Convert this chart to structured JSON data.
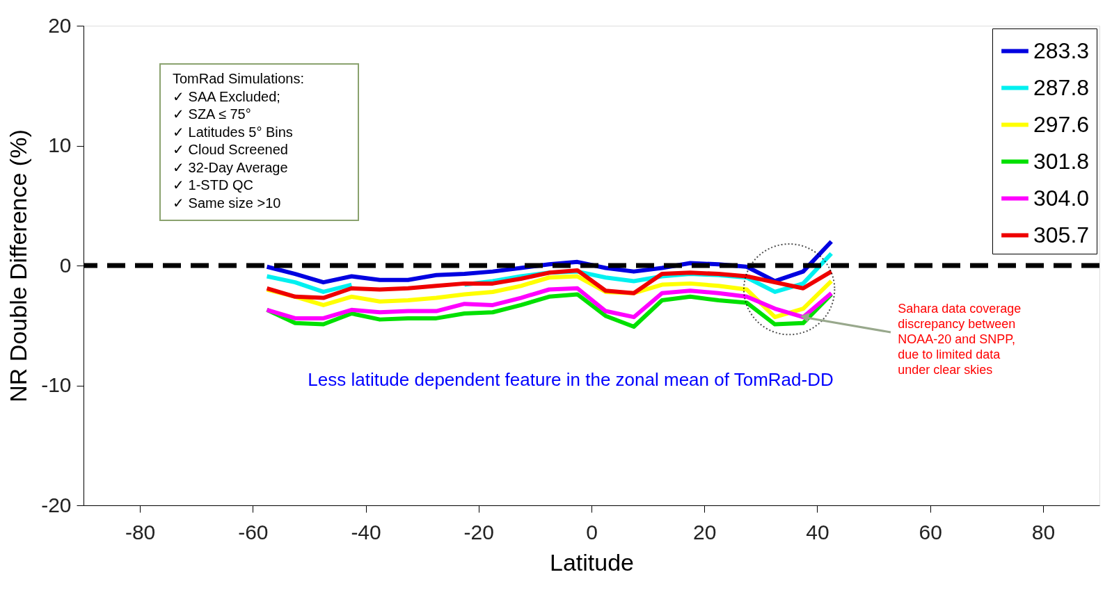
{
  "chart_data": {
    "type": "line",
    "xlabel": "Latitude",
    "ylabel": "NR Double Difference (%)",
    "x": [
      -57.5,
      -52.5,
      -47.5,
      -42.5,
      -37.5,
      -32.5,
      -27.5,
      -22.5,
      -17.5,
      -12.5,
      -7.5,
      -2.5,
      2.5,
      7.5,
      12.5,
      17.5,
      22.5,
      27.5,
      32.5,
      37.5,
      42.5
    ],
    "series": [
      {
        "name": "283.3",
        "color": "#0000e0",
        "values": [
          -0.1,
          -0.7,
          -1.4,
          -0.9,
          -1.2,
          -1.2,
          -0.8,
          -0.7,
          -0.5,
          -0.2,
          0.1,
          0.3,
          -0.2,
          -0.5,
          -0.2,
          0.2,
          0.1,
          -0.1,
          -1.3,
          -0.5,
          2.0
        ]
      },
      {
        "name": "287.8",
        "color": "#00f0f0",
        "values": [
          -0.9,
          -1.4,
          -2.2,
          -1.6,
          null,
          null,
          null,
          -1.6,
          -1.3,
          -0.9,
          -0.6,
          -0.5,
          -1.0,
          -1.3,
          -0.9,
          -0.7,
          -0.8,
          -1.0,
          -2.2,
          -1.5,
          1.0
        ]
      },
      {
        "name": "297.6",
        "color": "#ffff00",
        "values": [
          -2.0,
          -2.6,
          -3.3,
          -2.6,
          -3.0,
          -2.9,
          -2.7,
          -2.4,
          -2.2,
          -1.7,
          -1.0,
          -0.9,
          -2.2,
          -2.3,
          -1.6,
          -1.5,
          -1.7,
          -2.0,
          -4.3,
          -3.6,
          -1.3
        ]
      },
      {
        "name": "301.8",
        "color": "#00e000",
        "values": [
          -3.7,
          -4.8,
          -4.9,
          -4.0,
          -4.5,
          -4.4,
          -4.4,
          -4.0,
          -3.9,
          -3.3,
          -2.6,
          -2.4,
          -4.2,
          -5.1,
          -2.9,
          -2.6,
          -2.9,
          -3.1,
          -4.9,
          -4.8,
          -2.4
        ]
      },
      {
        "name": "304.0",
        "color": "#ff00ff",
        "values": [
          -3.7,
          -4.4,
          -4.4,
          -3.7,
          -3.9,
          -3.8,
          -3.8,
          -3.2,
          -3.3,
          -2.7,
          -2.0,
          -1.9,
          -3.8,
          -4.3,
          -2.3,
          -2.1,
          -2.3,
          -2.6,
          -3.6,
          -4.3,
          -2.3
        ]
      },
      {
        "name": "305.7",
        "color": "#ee0000",
        "values": [
          -1.9,
          -2.6,
          -2.7,
          -1.9,
          -2.0,
          -1.9,
          -1.7,
          -1.5,
          -1.5,
          -1.1,
          -0.6,
          -0.4,
          -2.1,
          -2.3,
          -0.7,
          -0.6,
          -0.7,
          -0.9,
          -1.4,
          -1.9,
          -0.5
        ]
      }
    ],
    "xlim": [
      -90,
      90
    ],
    "ylim": [
      -20,
      20
    ],
    "xticks": [
      -80,
      -60,
      -40,
      -20,
      0,
      20,
      40,
      60,
      80
    ],
    "yticks": [
      -20,
      -10,
      0,
      10,
      20
    ],
    "ref_lines": [
      {
        "axis": "y",
        "value": 0,
        "color": "#000000",
        "line_style": "dashed"
      }
    ],
    "annotations": [
      "TomRad Simulations:\n✓        SAA Excluded;\n✓        SZA ≤ 75°\n✓        Latitudes 5° Bins\n✓        Cloud Screened\n✓        32-Day Average\n✓        1-STD QC\n✓        Same size >10",
      "Less latitude dependent feature in the zonal mean of TomRad-DD",
      {
        "text": "Sahara data coverage\ndiscrepancy between\nNOAA-20 and SNPP,\ndue to limited data\nunder clear skies",
        "x": 37.5,
        "y": -4.3
      }
    ],
    "legend": "top right",
    "grid": false,
    "marker": "none",
    "line_style": "solid"
  }
}
